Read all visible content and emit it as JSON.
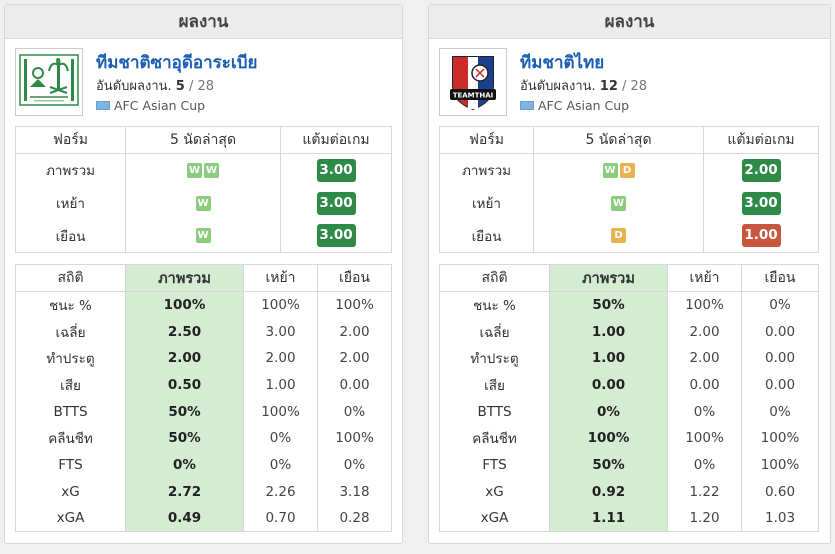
{
  "panels": [
    {
      "header": "ผลงาน",
      "team_name": "ทีมชาติซาอุดีอาระเบีย",
      "rank_label": "อันดับผลงาน.",
      "rank": "5",
      "rank_total": "/ 28",
      "league": "AFC Asian Cup",
      "form_headers": [
        "ฟอร์ม",
        "5 นัดล่าสุด",
        "แต้มต่อเกม"
      ],
      "form_rows": [
        {
          "label": "ภาพรวม",
          "results": [
            "W",
            "W"
          ],
          "ppg": "3.00"
        },
        {
          "label": "เหย้า",
          "results": [
            "W"
          ],
          "ppg": "3.00"
        },
        {
          "label": "เยือน",
          "results": [
            "W"
          ],
          "ppg": "3.00"
        }
      ],
      "stats_headers": [
        "สถิติ",
        "ภาพรวม",
        "เหย้า",
        "เยือน"
      ],
      "stats_rows": [
        {
          "label": "ชนะ %",
          "overall": "100%",
          "home": "100%",
          "away": "100%"
        },
        {
          "label": "เฉลี่ย",
          "overall": "2.50",
          "home": "3.00",
          "away": "2.00"
        },
        {
          "label": "ทำประตู",
          "overall": "2.00",
          "home": "2.00",
          "away": "2.00"
        },
        {
          "label": "เสีย",
          "overall": "0.50",
          "home": "1.00",
          "away": "0.00"
        },
        {
          "label": "BTTS",
          "overall": "50%",
          "home": "100%",
          "away": "0%"
        },
        {
          "label": "คลีนชีท",
          "overall": "50%",
          "home": "0%",
          "away": "100%"
        },
        {
          "label": "FTS",
          "overall": "0%",
          "home": "0%",
          "away": "0%"
        },
        {
          "label": "xG",
          "overall": "2.72",
          "home": "2.26",
          "away": "3.18"
        },
        {
          "label": "xGA",
          "overall": "0.49",
          "home": "0.70",
          "away": "0.28"
        }
      ]
    },
    {
      "header": "ผลงาน",
      "team_name": "ทีมชาติไทย",
      "rank_label": "อันดับผลงาน.",
      "rank": "12",
      "rank_total": "/ 28",
      "league": "AFC Asian Cup",
      "logo_text": "TEAMTHAI",
      "form_headers": [
        "ฟอร์ม",
        "5 นัดล่าสุด",
        "แต้มต่อเกม"
      ],
      "form_rows": [
        {
          "label": "ภาพรวม",
          "results": [
            "W",
            "D"
          ],
          "ppg": "2.00"
        },
        {
          "label": "เหย้า",
          "results": [
            "W"
          ],
          "ppg": "3.00"
        },
        {
          "label": "เยือน",
          "results": [
            "D"
          ],
          "ppg": "1.00"
        }
      ],
      "stats_headers": [
        "สถิติ",
        "ภาพรวม",
        "เหย้า",
        "เยือน"
      ],
      "stats_rows": [
        {
          "label": "ชนะ %",
          "overall": "50%",
          "home": "100%",
          "away": "0%"
        },
        {
          "label": "เฉลี่ย",
          "overall": "1.00",
          "home": "2.00",
          "away": "0.00"
        },
        {
          "label": "ทำประตู",
          "overall": "1.00",
          "home": "2.00",
          "away": "0.00"
        },
        {
          "label": "เสีย",
          "overall": "0.00",
          "home": "0.00",
          "away": "0.00"
        },
        {
          "label": "BTTS",
          "overall": "0%",
          "home": "0%",
          "away": "0%"
        },
        {
          "label": "คลีนชีท",
          "overall": "100%",
          "home": "100%",
          "away": "100%"
        },
        {
          "label": "FTS",
          "overall": "50%",
          "home": "0%",
          "away": "100%"
        },
        {
          "label": "xG",
          "overall": "0.92",
          "home": "1.22",
          "away": "0.60"
        },
        {
          "label": "xGA",
          "overall": "1.11",
          "home": "1.20",
          "away": "1.03"
        }
      ]
    }
  ]
}
